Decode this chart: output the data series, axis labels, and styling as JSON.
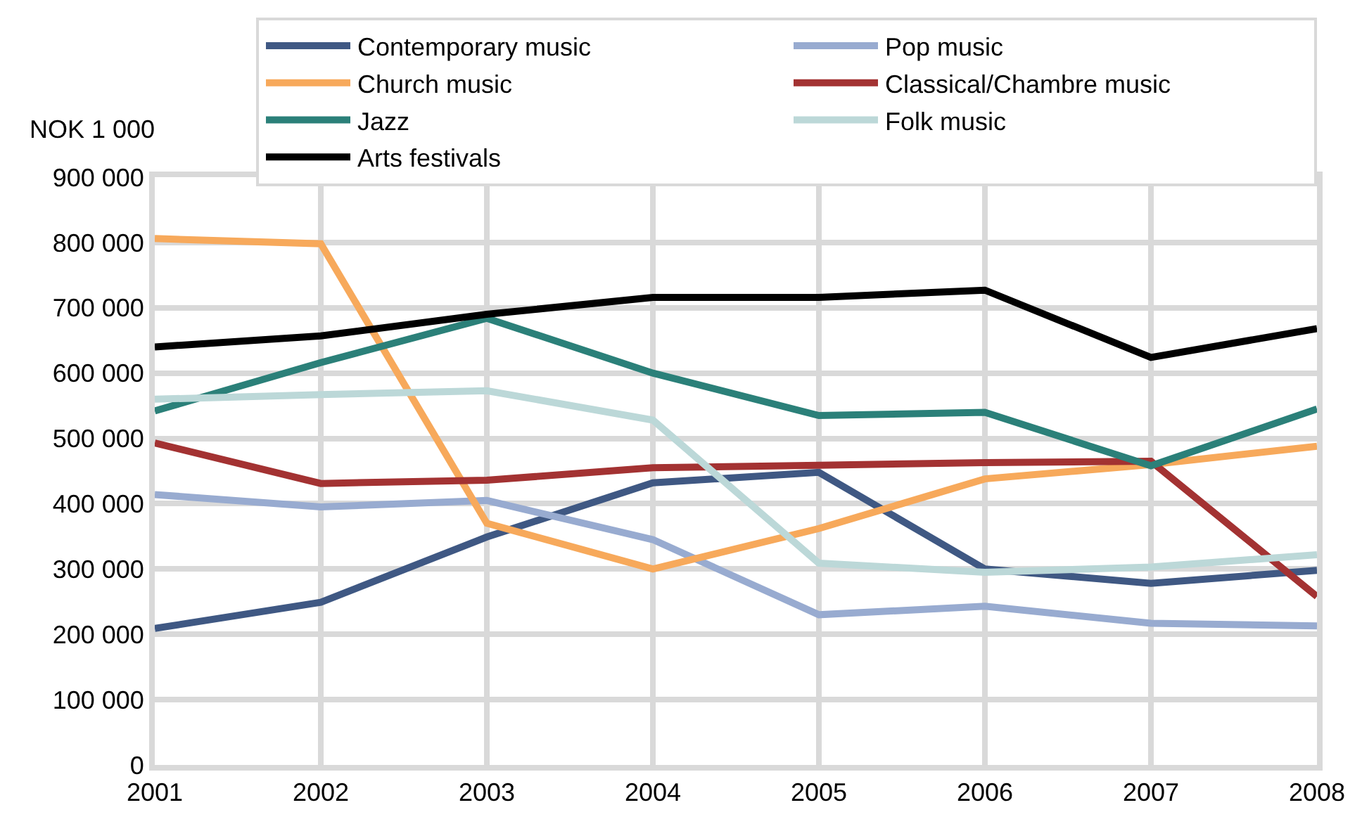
{
  "chart_data": {
    "type": "line",
    "ylabel": "NOK 1 000",
    "x": [
      2001,
      2002,
      2003,
      2004,
      2005,
      2006,
      2007,
      2008
    ],
    "xlim": [
      2001,
      2008
    ],
    "xticks": [
      2001,
      2002,
      2003,
      2004,
      2005,
      2006,
      2007,
      2008
    ],
    "ylim": [
      0,
      900000
    ],
    "yticks": [
      {
        "value": 0,
        "label": "0"
      },
      {
        "value": 100000,
        "label": "100 000"
      },
      {
        "value": 200000,
        "label": "200 000"
      },
      {
        "value": 300000,
        "label": "300 000"
      },
      {
        "value": 400000,
        "label": "400 000"
      },
      {
        "value": 500000,
        "label": "500 000"
      },
      {
        "value": 600000,
        "label": "600 000"
      },
      {
        "value": 700000,
        "label": "700 000"
      },
      {
        "value": 800000,
        "label": "800 000"
      },
      {
        "value": 900000,
        "label": "900 000"
      }
    ],
    "grid": true,
    "legend": "top right",
    "marker": "none",
    "line_style": "solid",
    "series": [
      {
        "name": "Contemporary music",
        "color": "#3f5883",
        "values": [
          209000,
          249000,
          349000,
          432000,
          448000,
          300000,
          278000,
          298000
        ]
      },
      {
        "name": "Pop music",
        "color": "#98abd0",
        "values": [
          414000,
          395000,
          405000,
          345000,
          230000,
          243000,
          217000,
          213000
        ]
      },
      {
        "name": "Church music",
        "color": "#f7a95b",
        "values": [
          806000,
          798000,
          370000,
          300000,
          362000,
          438000,
          460000,
          488000
        ]
      },
      {
        "name": "Classical/Chambre music",
        "color": "#a33232",
        "values": [
          493000,
          431000,
          436000,
          455000,
          459000,
          463000,
          465000,
          258000
        ]
      },
      {
        "name": "Jazz",
        "color": "#2b8079",
        "values": [
          542000,
          616000,
          684000,
          600000,
          535000,
          540000,
          458000,
          545000
        ]
      },
      {
        "name": "Folk music",
        "color": "#bcd8d8",
        "values": [
          560000,
          567000,
          573000,
          528000,
          309000,
          295000,
          303000,
          322000
        ]
      },
      {
        "name": "Arts festivals",
        "color": "#000000",
        "values": [
          640000,
          657000,
          690000,
          716000,
          716000,
          727000,
          624000,
          668000
        ]
      }
    ]
  }
}
